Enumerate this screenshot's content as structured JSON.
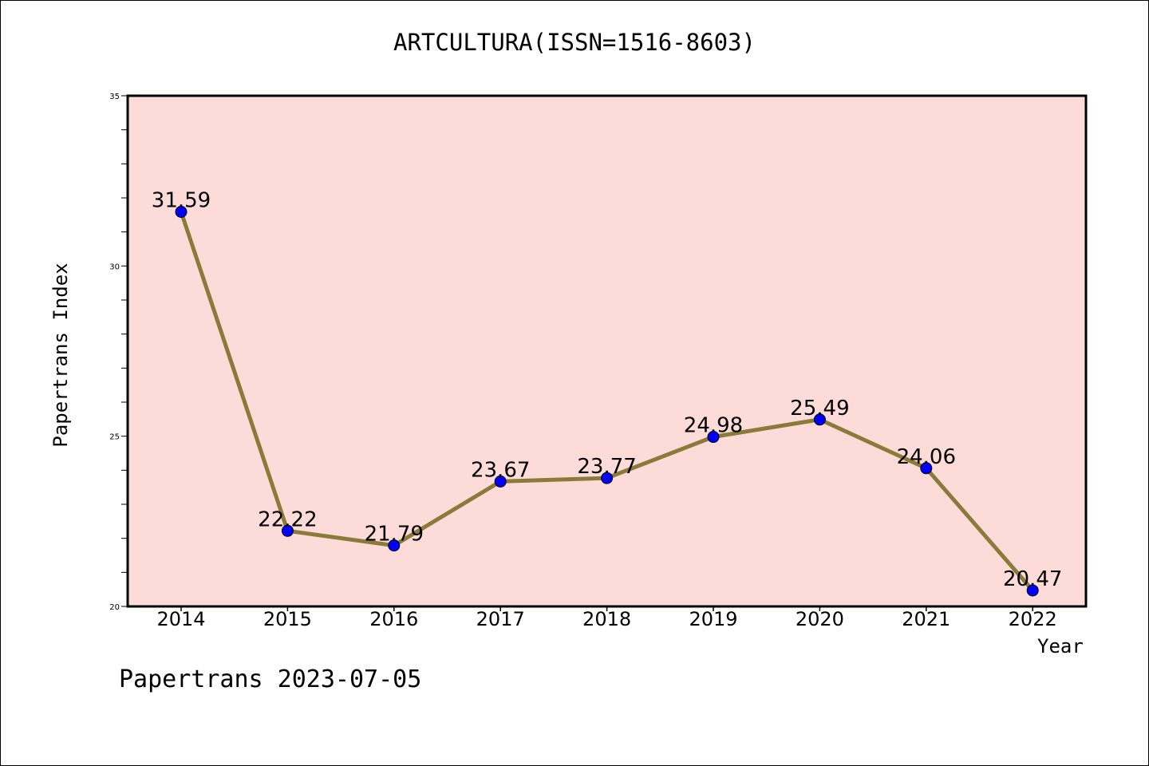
{
  "chart_data": {
    "type": "line",
    "title": "ARTCULTURA(ISSN=1516-8603)",
    "xlabel": "Year",
    "ylabel": "Papertrans Index",
    "x": [
      "2014",
      "2015",
      "2016",
      "2017",
      "2018",
      "2019",
      "2020",
      "2021",
      "2022"
    ],
    "series": [
      {
        "values": [
          31.59,
          22.22,
          21.79,
          23.67,
          23.77,
          24.98,
          25.49,
          24.06,
          20.47
        ],
        "labels": [
          "31.59",
          "22.22",
          "21.79",
          "23.67",
          "23.77",
          "24.98",
          "25.49",
          "24.06",
          "20.47"
        ]
      }
    ],
    "ylim": [
      20,
      35
    ],
    "yticks": [
      "20",
      "25",
      "30",
      "35"
    ],
    "grid": false,
    "colors": {
      "plot_background": "#fddbd8",
      "line": "#8b7b3a",
      "marker": "#0000ff"
    }
  },
  "footer": "Papertrans 2023-07-05"
}
